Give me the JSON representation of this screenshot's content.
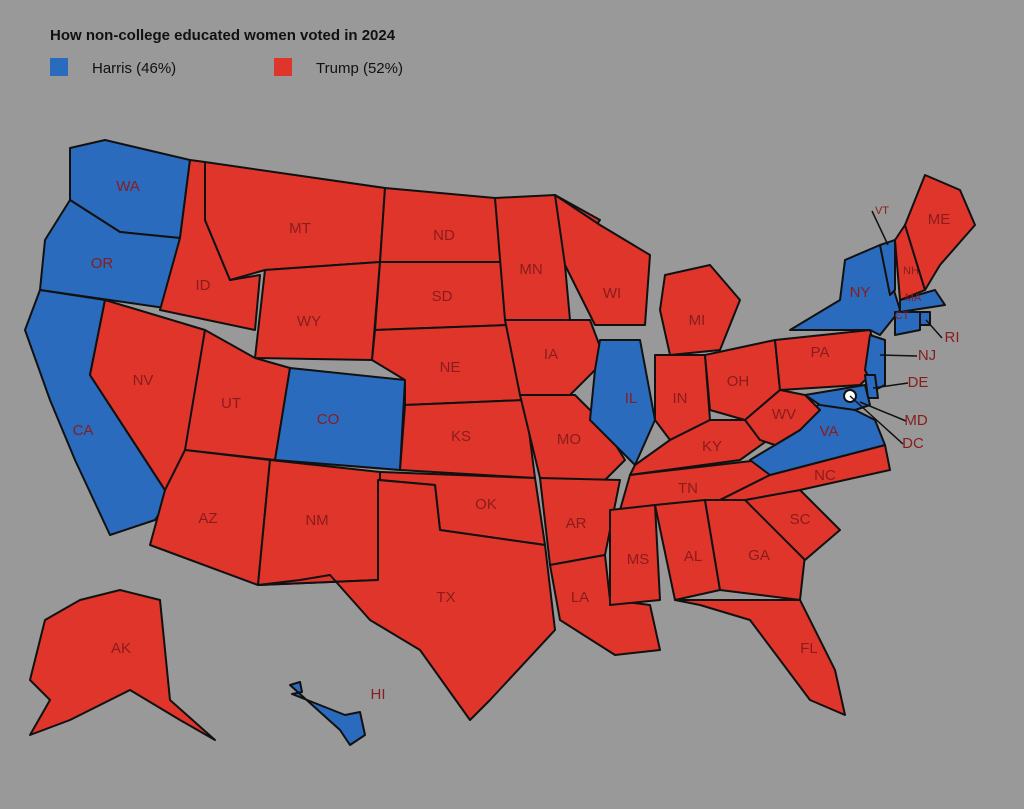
{
  "title": "How non-college educated women voted in 2024",
  "legend": [
    {
      "label": "Harris (46%)",
      "color": "#2b6bbd"
    },
    {
      "label": "Trump (52%)",
      "color": "#e0352b"
    }
  ],
  "states": [
    {
      "label": "WA",
      "color": "#2b6bbd"
    },
    {
      "label": "OR",
      "color": "#2b6bbd"
    },
    {
      "label": "CA",
      "color": "#2b6bbd"
    },
    {
      "label": "ID",
      "color": "#e0352b"
    },
    {
      "label": "NV",
      "color": "#e0352b"
    },
    {
      "label": "MT",
      "color": "#e0352b"
    },
    {
      "label": "WY",
      "color": "#e0352b"
    },
    {
      "label": "UT",
      "color": "#e0352b"
    },
    {
      "label": "CO",
      "color": "#2b6bbd"
    },
    {
      "label": "AZ",
      "color": "#e0352b"
    },
    {
      "label": "NM",
      "color": "#e0352b"
    },
    {
      "label": "ND",
      "color": "#e0352b"
    },
    {
      "label": "SD",
      "color": "#e0352b"
    },
    {
      "label": "NE",
      "color": "#e0352b"
    },
    {
      "label": "KS",
      "color": "#e0352b"
    },
    {
      "label": "OK",
      "color": "#e0352b"
    },
    {
      "label": "TX",
      "color": "#e0352b"
    },
    {
      "label": "MN",
      "color": "#e0352b"
    },
    {
      "label": "IA",
      "color": "#e0352b"
    },
    {
      "label": "MO",
      "color": "#e0352b"
    },
    {
      "label": "AR",
      "color": "#e0352b"
    },
    {
      "label": "LA",
      "color": "#e0352b"
    },
    {
      "label": "WI",
      "color": "#e0352b"
    },
    {
      "label": "IL",
      "color": "#2b6bbd"
    },
    {
      "label": "MI",
      "color": "#e0352b"
    },
    {
      "label": "IN",
      "color": "#e0352b"
    },
    {
      "label": "OH",
      "color": "#e0352b"
    },
    {
      "label": "KY",
      "color": "#e0352b"
    },
    {
      "label": "TN",
      "color": "#e0352b"
    },
    {
      "label": "MS",
      "color": "#e0352b"
    },
    {
      "label": "AL",
      "color": "#e0352b"
    },
    {
      "label": "GA",
      "color": "#e0352b"
    },
    {
      "label": "FL",
      "color": "#e0352b"
    },
    {
      "label": "SC",
      "color": "#e0352b"
    },
    {
      "label": "NC",
      "color": "#e0352b"
    },
    {
      "label": "VA",
      "color": "#2b6bbd"
    },
    {
      "label": "WV",
      "color": "#e0352b"
    },
    {
      "label": "PA",
      "color": "#e0352b"
    },
    {
      "label": "NY",
      "color": "#2b6bbd"
    },
    {
      "label": "VT",
      "color": "#2b6bbd"
    },
    {
      "label": "NH",
      "color": "#e0352b"
    },
    {
      "label": "ME",
      "color": "#e0352b"
    },
    {
      "label": "MA",
      "color": "#2b6bbd"
    },
    {
      "label": "CT",
      "color": "#2b6bbd"
    },
    {
      "label": "RI",
      "color": "#2b6bbd"
    },
    {
      "label": "NJ",
      "color": "#2b6bbd"
    },
    {
      "label": "DE",
      "color": "#2b6bbd"
    },
    {
      "label": "MD",
      "color": "#2b6bbd"
    },
    {
      "label": "DC",
      "color": "#ffffff"
    },
    {
      "label": "AK",
      "color": "#e0352b"
    },
    {
      "label": "HI",
      "color": "#2b6bbd"
    }
  ]
}
